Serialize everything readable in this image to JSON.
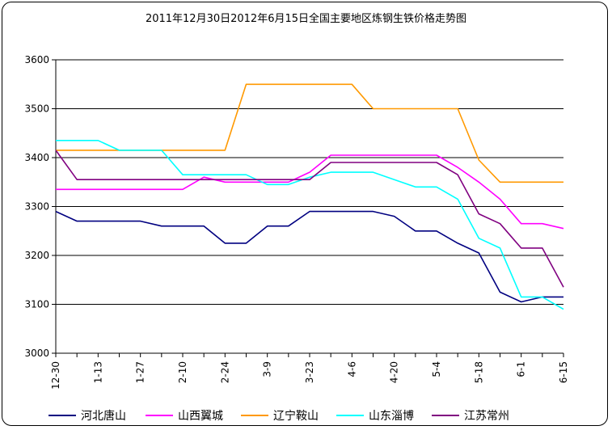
{
  "chart_data": {
    "type": "line",
    "title": "2011年12月30日2012年6月15日全国主要地区炼钢生铁价格走势图",
    "xlabel": "",
    "ylabel": "",
    "ylim": [
      3000,
      3600
    ],
    "yticks": [
      3000,
      3100,
      3200,
      3300,
      3400,
      3500,
      3600
    ],
    "grid": true,
    "legend_position": "bottom",
    "x_tick_labels": [
      "12-30",
      "1-13",
      "1-27",
      "2-10",
      "2-24",
      "3-9",
      "3-23",
      "4-6",
      "4-20",
      "5-4",
      "5-18",
      "6-1",
      "6-15"
    ],
    "x_dates": [
      "12-30",
      "1-6",
      "1-13",
      "1-20",
      "1-27",
      "2-3",
      "2-10",
      "2-17",
      "2-24",
      "3-2",
      "3-9",
      "3-16",
      "3-23",
      "3-30",
      "4-6",
      "4-13",
      "4-20",
      "4-27",
      "5-4",
      "5-11",
      "5-18",
      "5-25",
      "6-1",
      "6-8",
      "6-15"
    ],
    "series": [
      {
        "name": "河北唐山",
        "color": "#000080",
        "values": [
          3290,
          3270,
          3270,
          3270,
          3270,
          3260,
          3260,
          3260,
          3225,
          3225,
          3260,
          3260,
          3290,
          3290,
          3290,
          3290,
          3280,
          3250,
          3250,
          3225,
          3205,
          3125,
          3105,
          3115,
          3115
        ]
      },
      {
        "name": "山西翼城",
        "color": "#ff00ff",
        "values": [
          3335,
          3335,
          3335,
          3335,
          3335,
          3335,
          3335,
          3360,
          3350,
          3350,
          3350,
          3350,
          3370,
          3405,
          3405,
          3405,
          3405,
          3405,
          3405,
          3380,
          3350,
          3315,
          3265,
          3265,
          3255
        ]
      },
      {
        "name": "辽宁鞍山",
        "color": "#ff9900",
        "values": [
          3415,
          3415,
          3415,
          3415,
          3415,
          3415,
          3415,
          3415,
          3415,
          3550,
          3550,
          3550,
          3550,
          3550,
          3550,
          3500,
          3500,
          3500,
          3500,
          3500,
          3395,
          3350,
          3350,
          3350,
          3350
        ]
      },
      {
        "name": "山东淄博",
        "color": "#00ffff",
        "values": [
          3435,
          3435,
          3435,
          3415,
          3415,
          3415,
          3365,
          3365,
          3365,
          3365,
          3345,
          3345,
          3360,
          3370,
          3370,
          3370,
          3355,
          3340,
          3340,
          3315,
          3235,
          3215,
          3115,
          3115,
          3090
        ]
      },
      {
        "name": "江苏常州",
        "color": "#800080",
        "values": [
          3415,
          3355,
          3355,
          3355,
          3355,
          3355,
          3355,
          3355,
          3355,
          3355,
          3355,
          3355,
          3355,
          3390,
          3390,
          3390,
          3390,
          3390,
          3390,
          3365,
          3285,
          3265,
          3215,
          3215,
          3135
        ]
      }
    ]
  }
}
